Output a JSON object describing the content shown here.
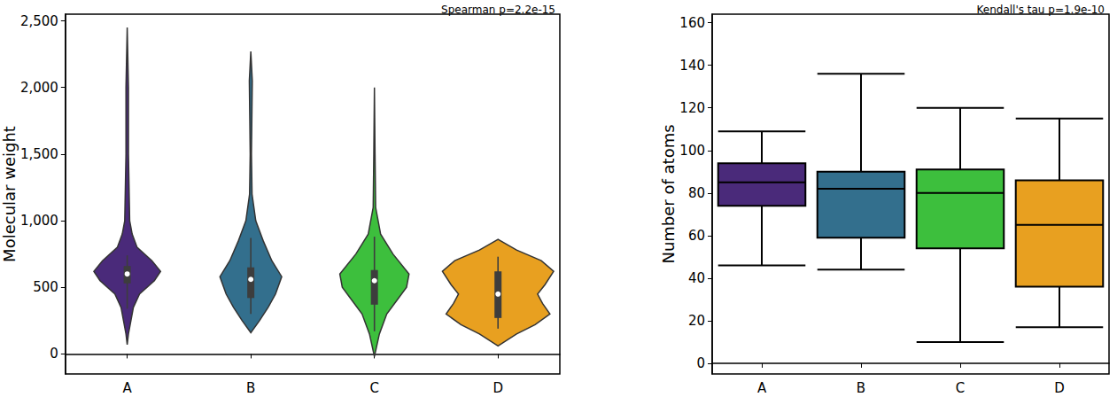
{
  "chart_data": [
    {
      "type": "violin",
      "title": "Spearman p=2.2e-15",
      "y_label": "Molecular weight",
      "categories": [
        "A",
        "B",
        "C",
        "D"
      ],
      "colors": [
        "#4a2a7a",
        "#336f8d",
        "#3dbf3d",
        "#e8a020"
      ],
      "ylim": [
        -150,
        2550
      ],
      "yticks": [
        0,
        500,
        1000,
        1500,
        2000,
        2500
      ],
      "grid": false,
      "density": [
        [
          [
            2450,
            0
          ],
          [
            2000,
            0.01
          ],
          [
            1500,
            0.01
          ],
          [
            1000,
            0.02
          ],
          [
            900,
            0.04
          ],
          [
            800,
            0.08
          ],
          [
            700,
            0.2
          ],
          [
            620,
            0.27
          ],
          [
            550,
            0.22
          ],
          [
            450,
            0.1
          ],
          [
            350,
            0.05
          ],
          [
            250,
            0.03
          ],
          [
            150,
            0.01
          ],
          [
            70,
            0
          ]
        ],
        [
          [
            2270,
            0
          ],
          [
            2050,
            0.012
          ],
          [
            1500,
            0.005
          ],
          [
            1200,
            0.01
          ],
          [
            1000,
            0.04
          ],
          [
            850,
            0.1
          ],
          [
            700,
            0.17
          ],
          [
            580,
            0.25
          ],
          [
            450,
            0.2
          ],
          [
            350,
            0.14
          ],
          [
            250,
            0.07
          ],
          [
            160,
            0
          ]
        ],
        [
          [
            2000,
            0
          ],
          [
            1500,
            0.005
          ],
          [
            1100,
            0.01
          ],
          [
            900,
            0.05
          ],
          [
            750,
            0.15
          ],
          [
            600,
            0.28
          ],
          [
            500,
            0.26
          ],
          [
            400,
            0.18
          ],
          [
            300,
            0.1
          ],
          [
            150,
            0.04
          ],
          [
            -20,
            0
          ]
        ],
        [
          [
            860,
            0
          ],
          [
            780,
            0.15
          ],
          [
            700,
            0.35
          ],
          [
            620,
            0.45
          ],
          [
            520,
            0.38
          ],
          [
            450,
            0.32
          ],
          [
            380,
            0.36
          ],
          [
            300,
            0.42
          ],
          [
            220,
            0.3
          ],
          [
            150,
            0.15
          ],
          [
            60,
            0
          ]
        ]
      ],
      "box": [
        {
          "whisker_low": 340,
          "q1": 530,
          "median": 600,
          "q3": 660,
          "whisker_high": 740
        },
        {
          "whisker_low": 300,
          "q1": 420,
          "median": 560,
          "q3": 650,
          "whisker_high": 870
        },
        {
          "whisker_low": 170,
          "q1": 370,
          "median": 550,
          "q3": 630,
          "whisker_high": 880
        },
        {
          "whisker_low": 190,
          "q1": 270,
          "median": 450,
          "q3": 620,
          "whisker_high": 730
        }
      ]
    },
    {
      "type": "box",
      "title": "Kendall's tau p=1.9e-10",
      "y_label": "Number of atoms",
      "categories": [
        "A",
        "B",
        "C",
        "D"
      ],
      "colors": [
        "#4a2a7a",
        "#336f8d",
        "#3dbf3d",
        "#e8a020"
      ],
      "ylim": [
        -5,
        164
      ],
      "yticks": [
        0,
        20,
        40,
        60,
        80,
        100,
        120,
        140,
        160
      ],
      "grid": false,
      "box": [
        {
          "whisker_low": 46,
          "q1": 74,
          "median": 85,
          "q3": 94,
          "whisker_high": 109
        },
        {
          "whisker_low": 44,
          "q1": 59,
          "median": 82,
          "q3": 90,
          "whisker_high": 136
        },
        {
          "whisker_low": 10,
          "q1": 54,
          "median": 80,
          "q3": 91,
          "whisker_high": 120
        },
        {
          "whisker_low": 17,
          "q1": 36,
          "median": 65,
          "q3": 86,
          "whisker_high": 115
        }
      ]
    }
  ]
}
